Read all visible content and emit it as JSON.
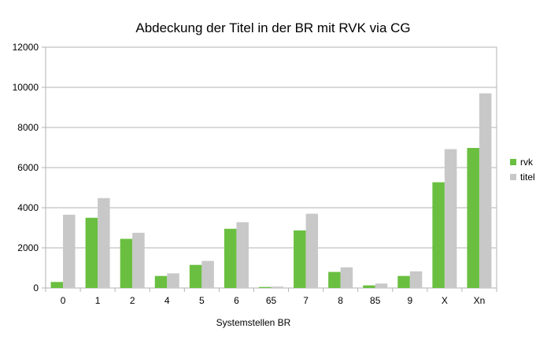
{
  "chart_data": {
    "type": "bar",
    "title": "Abdeckung der Titel  in der BR mit RVK via CG",
    "xlabel": "Systemstellen BR",
    "ylabel": "",
    "ylim": [
      0,
      12000
    ],
    "yticks": [
      0,
      2000,
      4000,
      6000,
      8000,
      10000,
      12000
    ],
    "grid": true,
    "legend_position": "right",
    "categories": [
      "0",
      "1",
      "2",
      "4",
      "5",
      "6",
      "65",
      "7",
      "8",
      "85",
      "9",
      "X",
      "Xn"
    ],
    "series": [
      {
        "name": "rvk",
        "color": "#6abf40",
        "values": [
          300,
          3500,
          2450,
          600,
          1150,
          2950,
          50,
          2870,
          800,
          130,
          600,
          5270,
          6980
        ]
      },
      {
        "name": "titel",
        "color": "#c8c8c8",
        "values": [
          3650,
          4480,
          2750,
          730,
          1350,
          3280,
          70,
          3700,
          1030,
          220,
          830,
          6920,
          9700
        ]
      }
    ]
  }
}
